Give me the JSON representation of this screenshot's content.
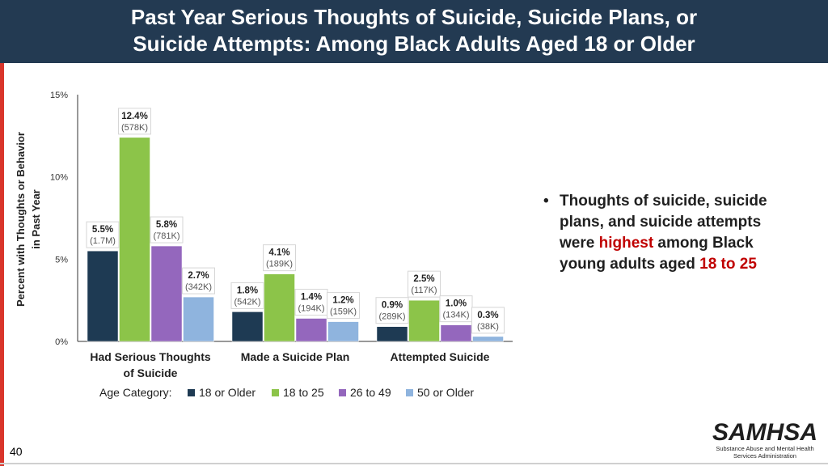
{
  "header": {
    "title_line1": "Past Year Serious Thoughts of Suicide, Suicide Plans, or",
    "title_line2": "Suicide Attempts: Among Black Adults Aged 18 or Older"
  },
  "colors": {
    "header_bg": "#233a52",
    "accent_red": "#d9352b",
    "highlight_text": "#c00000"
  },
  "chart_data": {
    "type": "bar",
    "ylabel_line1": "Percent with Thoughts or Behavior",
    "ylabel_line2": "in Past Year",
    "ylim": [
      0,
      15
    ],
    "yticks": [
      0,
      5,
      10,
      15
    ],
    "ytick_labels": [
      "0%",
      "5%",
      "10%",
      "15%"
    ],
    "grid": false,
    "categories": [
      [
        "Had Serious Thoughts",
        "of Suicide"
      ],
      [
        "Made a Suicide Plan"
      ],
      [
        "Attempted Suicide"
      ]
    ],
    "legend_title": "Age Category:",
    "legend_position": "bottom",
    "series": [
      {
        "name": "18 or Older",
        "color": "#1e3a53",
        "values": [
          5.5,
          1.8,
          0.9
        ],
        "labels": [
          "5.5%",
          "1.8%",
          "0.9%"
        ],
        "counts": [
          "(1.7M)",
          "(542K)",
          "(289K)"
        ]
      },
      {
        "name": "18 to 25",
        "color": "#8cc449",
        "values": [
          12.4,
          4.1,
          2.5
        ],
        "labels": [
          "12.4%",
          "4.1%",
          "2.5%"
        ],
        "counts": [
          "(578K)",
          "(189K)",
          "(117K)"
        ]
      },
      {
        "name": "26 to 49",
        "color": "#9467bd",
        "values": [
          5.8,
          1.4,
          1.0
        ],
        "labels": [
          "5.8%",
          "1.4%",
          "1.0%"
        ],
        "counts": [
          "(781K)",
          "(194K)",
          "(134K)"
        ]
      },
      {
        "name": "50 or Older",
        "color": "#8fb4de",
        "values": [
          2.7,
          1.2,
          0.3
        ],
        "labels": [
          "2.7%",
          "1.2%",
          "0.3%"
        ],
        "counts": [
          "(342K)",
          "(159K)",
          "(38K)"
        ]
      }
    ]
  },
  "bullet": {
    "part1": "Thoughts of suicide, suicide plans, and suicide attempts were ",
    "highlight1": "highest",
    "part2": " among Black young adults aged ",
    "highlight2": "18 to 25"
  },
  "footer": {
    "page_number": "40",
    "logo_name": "SAMHSA",
    "logo_sub_line1": "Substance Abuse and Mental Health",
    "logo_sub_line2": "Services Administration"
  }
}
